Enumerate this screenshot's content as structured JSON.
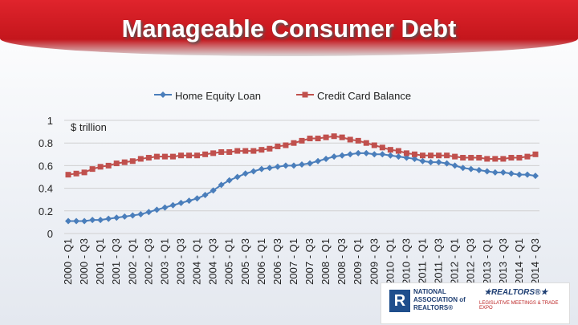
{
  "chart_data": {
    "type": "line",
    "title": "Manageable Consumer Debt",
    "annotation": "$ trillion",
    "categories": [
      "2000 - Q1",
      null,
      "2000 - Q3",
      null,
      "2001 - Q1",
      null,
      "2001 - Q3",
      null,
      "2002 - Q1",
      null,
      "2002 - Q3",
      null,
      "2003 - Q1",
      null,
      "2003 - Q3",
      null,
      "2004 - Q1",
      null,
      "2004 - Q3",
      null,
      "2005 - Q1",
      null,
      "2005 - Q3",
      null,
      "2006 - Q1",
      null,
      "2006 - Q3",
      null,
      "2007 - Q1",
      null,
      "2007 - Q3",
      null,
      "2008 - Q1",
      null,
      "2008 - Q3",
      null,
      "2009 - Q1",
      null,
      "2009 - Q3",
      null,
      "2010 - Q1",
      null,
      "2010 - Q3",
      null,
      "2011 - Q1",
      null,
      "2011 - Q3",
      null,
      "2012 - Q1",
      null,
      "2012 - Q3",
      null,
      "2013 - Q1",
      null,
      "2013 - Q3",
      null,
      "2014 - Q1",
      null,
      "2014 - Q3"
    ],
    "series": [
      {
        "name": "Home Equity Loan",
        "color": "#4a7ebb",
        "marker": "diamond",
        "values": [
          0.11,
          0.11,
          0.11,
          0.12,
          0.12,
          0.13,
          0.14,
          0.15,
          0.16,
          0.17,
          0.19,
          0.21,
          0.23,
          0.25,
          0.27,
          0.29,
          0.31,
          0.34,
          0.38,
          0.43,
          0.47,
          0.5,
          0.53,
          0.55,
          0.57,
          0.58,
          0.59,
          0.6,
          0.6,
          0.61,
          0.62,
          0.64,
          0.66,
          0.68,
          0.69,
          0.7,
          0.71,
          0.71,
          0.7,
          0.7,
          0.69,
          0.68,
          0.67,
          0.66,
          0.64,
          0.63,
          0.63,
          0.62,
          0.6,
          0.58,
          0.57,
          0.56,
          0.55,
          0.54,
          0.54,
          0.53,
          0.52,
          0.52,
          0.51
        ]
      },
      {
        "name": "Credit Card Balance",
        "color": "#c0504d",
        "marker": "square",
        "values": [
          0.52,
          0.53,
          0.54,
          0.57,
          0.59,
          0.6,
          0.62,
          0.63,
          0.64,
          0.66,
          0.67,
          0.68,
          0.68,
          0.68,
          0.69,
          0.69,
          0.69,
          0.7,
          0.71,
          0.72,
          0.72,
          0.73,
          0.73,
          0.73,
          0.74,
          0.75,
          0.77,
          0.78,
          0.8,
          0.82,
          0.84,
          0.84,
          0.85,
          0.86,
          0.85,
          0.83,
          0.82,
          0.8,
          0.78,
          0.76,
          0.74,
          0.73,
          0.71,
          0.7,
          0.69,
          0.69,
          0.69,
          0.69,
          0.68,
          0.67,
          0.67,
          0.67,
          0.66,
          0.66,
          0.66,
          0.67,
          0.67,
          0.68,
          0.7
        ]
      }
    ],
    "ylim": [
      0,
      1
    ],
    "yticks": [
      0,
      0.2,
      0.4,
      0.6,
      0.8,
      1
    ],
    "grid": true,
    "legend": "top"
  },
  "logo": {
    "mark": "R",
    "name": "NATIONAL ASSOCIATION of REALTORS®",
    "event": "★REALTORS®★",
    "event_sub": "LEGISLATIVE MEETINGS & TRADE EXPO"
  }
}
